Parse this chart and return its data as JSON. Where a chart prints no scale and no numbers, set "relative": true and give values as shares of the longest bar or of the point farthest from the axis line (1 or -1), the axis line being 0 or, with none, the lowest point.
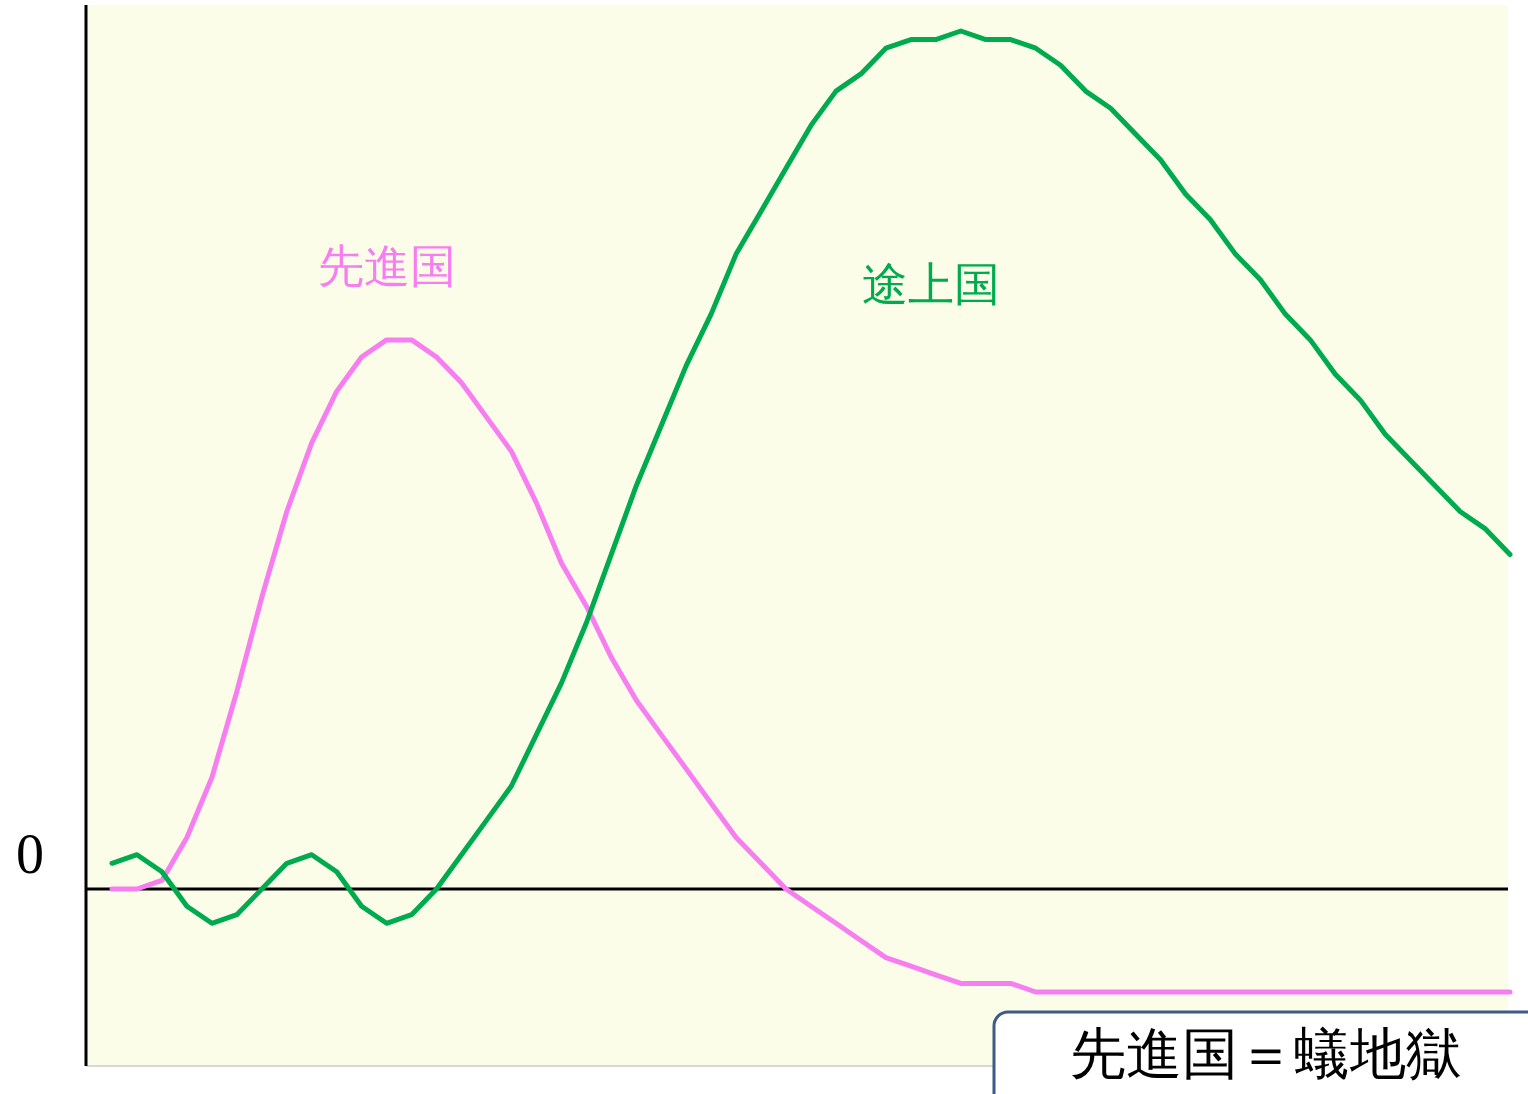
{
  "chart_data": {
    "type": "line",
    "relative": true,
    "ref_lines": [
      {
        "axis": "y",
        "value": 0,
        "color": "#000000"
      }
    ],
    "categories": [
      null,
      null,
      null,
      null,
      null,
      null,
      null,
      null,
      null,
      null,
      null,
      null,
      null,
      null,
      null,
      null,
      null,
      null,
      null,
      null,
      null,
      null,
      null,
      null,
      null,
      null,
      null,
      null,
      null,
      null,
      null,
      null,
      null,
      null,
      null,
      null,
      null,
      null,
      null,
      null,
      null,
      null,
      null,
      null,
      null,
      null,
      null,
      null,
      null,
      null,
      null,
      null,
      null,
      null,
      null,
      null,
      null
    ],
    "series": [
      {
        "name": "先進国",
        "color": "#f77ef0",
        "values": [
          0,
          0,
          0.01,
          0.06,
          0.13,
          0.23,
          0.34,
          0.44,
          0.52,
          0.58,
          0.62,
          0.64,
          0.64,
          0.62,
          0.59,
          0.55,
          0.51,
          0.45,
          0.38,
          0.33,
          0.27,
          0.22,
          0.18,
          0.14,
          0.1,
          0.06,
          0.03,
          0,
          -0.02,
          -0.04,
          -0.06,
          -0.08,
          -0.09,
          -0.1,
          -0.11,
          -0.11,
          -0.11,
          -0.12,
          -0.12,
          -0.12,
          -0.12,
          -0.12,
          -0.12,
          -0.12,
          -0.12,
          -0.12,
          -0.12,
          -0.12,
          -0.12,
          -0.12,
          -0.12,
          -0.12,
          -0.12,
          -0.12,
          -0.12,
          -0.12,
          -0.12
        ]
      },
      {
        "name": "途上国",
        "color": "#00aa4f",
        "values": [
          0.03,
          0.04,
          0.02,
          -0.02,
          -0.04,
          -0.03,
          0,
          0.03,
          0.04,
          0.02,
          -0.02,
          -0.04,
          -0.03,
          0,
          0.04,
          0.08,
          0.12,
          0.18,
          0.24,
          0.31,
          0.39,
          0.47,
          0.54,
          0.61,
          0.67,
          0.74,
          0.79,
          0.84,
          0.89,
          0.93,
          0.95,
          0.98,
          0.99,
          0.99,
          1,
          0.99,
          0.99,
          0.98,
          0.96,
          0.93,
          0.91,
          0.88,
          0.85,
          0.81,
          0.78,
          0.74,
          0.71,
          0.67,
          0.64,
          0.6,
          0.57,
          0.53,
          0.5,
          0.47,
          0.44,
          0.42,
          0.39
        ]
      }
    ],
    "annotations": [
      "0",
      "先進国＝蟻地獄"
    ],
    "marker": "none",
    "line_style": "solid"
  }
}
